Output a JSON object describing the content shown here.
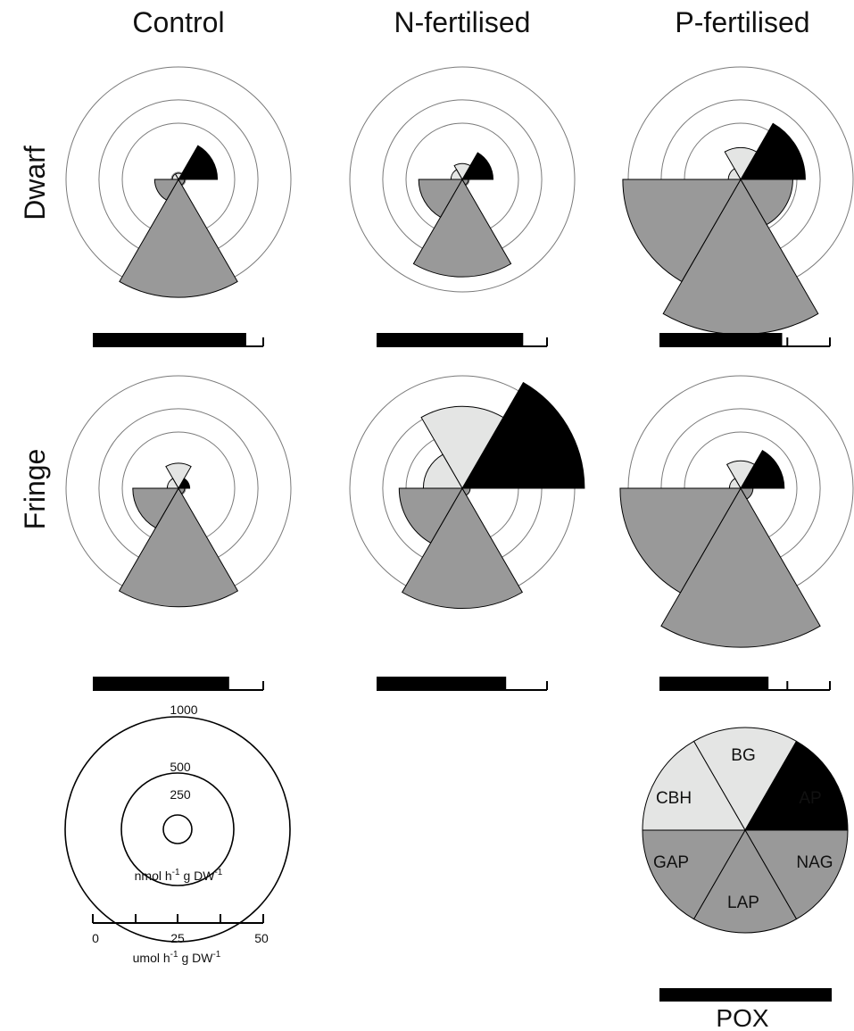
{
  "chart_data": {
    "type": "polar-area",
    "columns": [
      "Control",
      "N-fertilised",
      "P-fertilised"
    ],
    "rows": [
      "Dwarf",
      "Fringe"
    ],
    "enzymes": [
      "AP",
      "BG",
      "CBH",
      "GAP",
      "LAP",
      "NAG"
    ],
    "enzyme_colors": {
      "AP": "#000000",
      "BG": "#e4e5e4",
      "CBH": "#e4e5e4",
      "GAP": "#999999",
      "LAP": "#999999",
      "NAG": "#999999"
    },
    "radial_scale": "sqrt",
    "radial_ticks": [
      250,
      500,
      1000
    ],
    "radial_unit": "nmol h-1 g DW-1",
    "panels": [
      {
        "row": "Dwarf",
        "col": "Control",
        "values": {
          "AP": 120,
          "BG": 3,
          "CBH": 3,
          "GAP": 45,
          "LAP": 1100,
          "NAG": 3
        },
        "pox": 45
      },
      {
        "row": "Dwarf",
        "col": "N-fertilised",
        "values": {
          "AP": 75,
          "BG": 20,
          "CBH": 10,
          "GAP": 150,
          "LAP": 750,
          "NAG": 3
        },
        "pox": 43
      },
      {
        "row": "Dwarf",
        "col": "P-fertilised",
        "values": {
          "AP": 330,
          "BG": 80,
          "CBH": 12,
          "GAP": 1100,
          "LAP": 1900,
          "NAG": 215
        },
        "pox": 36
      },
      {
        "row": "Fringe",
        "col": "Control",
        "values": {
          "AP": 10,
          "BG": 50,
          "CBH": 10,
          "GAP": 165,
          "LAP": 1110,
          "NAG": 3
        },
        "pox": 40
      },
      {
        "row": "Fringe",
        "col": "N-fertilised",
        "values": {
          "AP": 1180,
          "BG": 530,
          "CBH": 120,
          "GAP": 315,
          "LAP": 1140,
          "NAG": 5
        },
        "pox": 38
      },
      {
        "row": "Fringe",
        "col": "P-fertilised",
        "values": {
          "AP": 150,
          "BG": 60,
          "CBH": 10,
          "GAP": 1150,
          "LAP": 2000,
          "NAG": 12
        },
        "pox": 32
      }
    ],
    "pox_scale": {
      "min": 0,
      "max": 50,
      "ticks": [
        0,
        25,
        50
      ],
      "minor_ticks": [
        12.5,
        37.5
      ],
      "unit": "umol h-1 g DW-1"
    }
  },
  "legend": {
    "ring_labels": [
      "1000",
      "500",
      "250"
    ],
    "ring_unit": "nmol h",
    "ring_unit_sup": "-1",
    "ring_unit_tail": " g DW",
    "ring_unit_sup2": "-1",
    "axis_ticks": [
      "0",
      "25",
      "50"
    ],
    "axis_unit": "umol h",
    "axis_unit_sup": "-1",
    "axis_unit_tail": " g DW",
    "axis_unit_sup2": "-1"
  },
  "key": {
    "labels": [
      "BG",
      "AP",
      "CBH",
      "GAP",
      "NAG",
      "LAP"
    ],
    "pox_label": "POX"
  }
}
